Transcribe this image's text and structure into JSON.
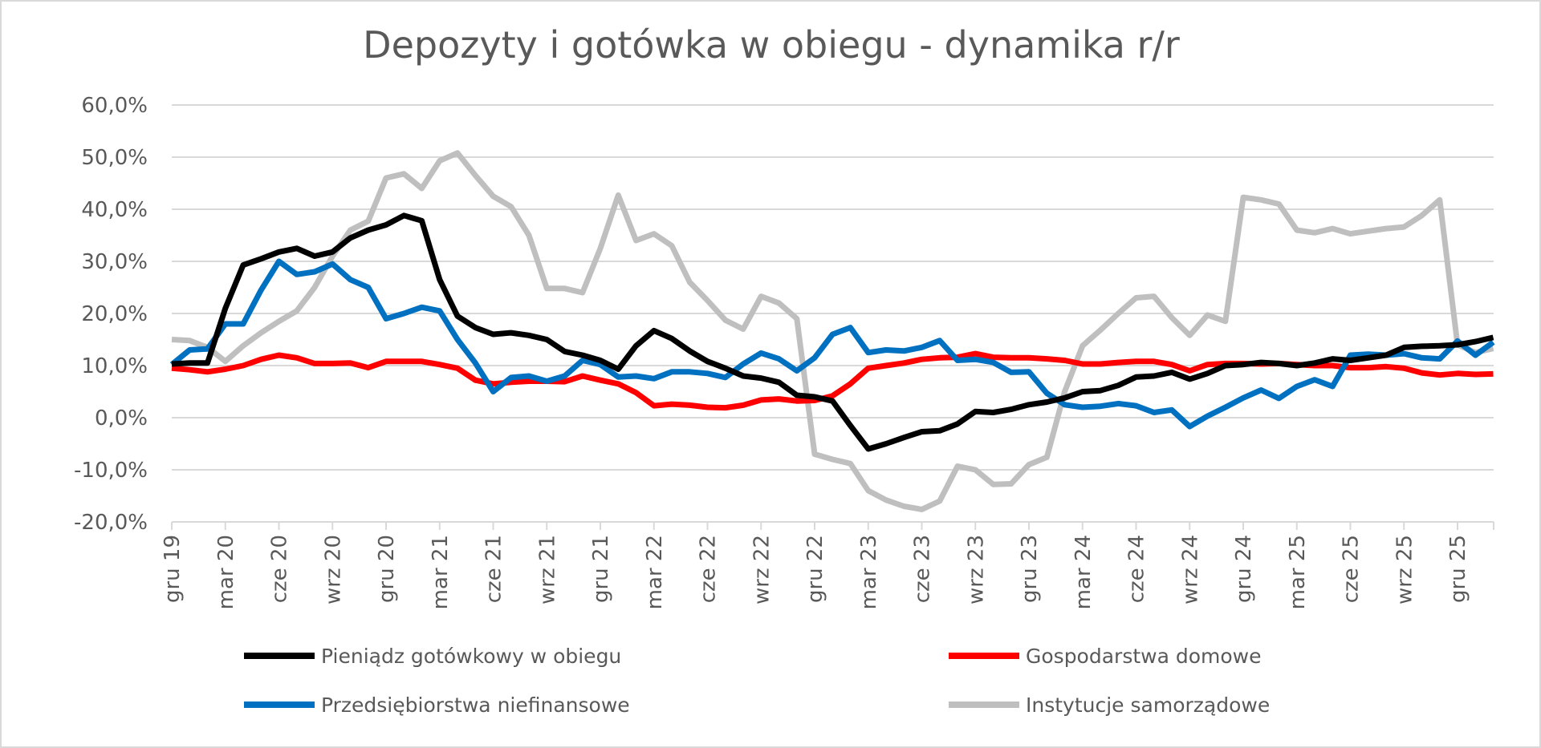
{
  "chart_data": {
    "type": "line",
    "title": "Depozyty i gotówka w obiegu - dynamika r/r",
    "xlabel": "",
    "ylabel": "",
    "ylim": [
      -20,
      60
    ],
    "y_ticks": [
      "60,0%",
      "50,0%",
      "40,0%",
      "30,0%",
      "20,0%",
      "10,0%",
      "0,0%",
      "-10,0%",
      "-20,0%"
    ],
    "y_tick_values": [
      60,
      50,
      40,
      30,
      20,
      10,
      0,
      -10,
      -20
    ],
    "x_tick_labels": [
      "gru 19",
      "mar 20",
      "cze 20",
      "wrz 20",
      "gru 20",
      "mar 21",
      "cze 21",
      "wrz 21",
      "gru 21",
      "mar 22",
      "cze 22",
      "wrz 22",
      "gru 22",
      "mar 23",
      "cze 23",
      "wrz 23",
      "gru 23",
      "mar 24",
      "cze 24",
      "wrz 24",
      "gru 24",
      "mar 25",
      "cze 25",
      "wrz 25",
      "gru 25"
    ],
    "x_range": [
      "2019-12",
      "2026-02"
    ],
    "x_frequency": "monthly",
    "grid": "horizontal",
    "legend_placement": "bottom",
    "series": [
      {
        "name": "Pieniądz gotówkowy w obiegu",
        "color": "#000000",
        "values": [
          10.3,
          10.5,
          10.5,
          21,
          29.3,
          30.5,
          31.8,
          32.5,
          31,
          31.8,
          34.5,
          36,
          37,
          38.8,
          37.8,
          26.5,
          19.5,
          17.3,
          16,
          16.3,
          15.8,
          15,
          12.7,
          12,
          11,
          9.3,
          13.8,
          16.7,
          15.2,
          12.8,
          10.8,
          9.5,
          8,
          7.6,
          6.8,
          4.3,
          4,
          3.2,
          -1.5,
          -6,
          -5,
          -3.8,
          -2.7,
          -2.5,
          -1.2,
          1.2,
          1,
          1.6,
          2.5,
          3,
          3.8,
          5,
          5.2,
          6.2,
          7.8,
          8,
          8.7,
          7.4,
          8.5,
          10,
          10.2,
          10.6,
          10.4,
          10,
          10.5,
          11.3,
          11,
          11.5,
          12,
          13.5,
          13.7,
          13.8,
          14,
          14.6,
          15.4
        ]
      },
      {
        "name": "Gospodarstwa domowe",
        "color": "#ff0000",
        "values": [
          9.5,
          9.2,
          8.8,
          9.3,
          10,
          11.2,
          12,
          11.5,
          10.4,
          10.4,
          10.5,
          9.6,
          10.8,
          10.8,
          10.8,
          10.2,
          9.5,
          7.2,
          6.5,
          6.8,
          7,
          7,
          6.9,
          8,
          7.2,
          6.5,
          4.8,
          2.3,
          2.6,
          2.4,
          2,
          1.9,
          2.4,
          3.4,
          3.6,
          3.2,
          3.3,
          4.2,
          6.5,
          9.5,
          10,
          10.5,
          11.2,
          11.5,
          11.6,
          12.3,
          11.6,
          11.5,
          11.5,
          11.3,
          11,
          10.3,
          10.3,
          10.6,
          10.8,
          10.8,
          10.2,
          9,
          10.2,
          10.4,
          10.4,
          10.3,
          10.4,
          10.2,
          10,
          10,
          9.6,
          9.6,
          9.8,
          9.5,
          8.6,
          8.2,
          8.5,
          8.3,
          8.4
        ]
      },
      {
        "name": "Przedsiębiorstwa niefinansowe",
        "color": "#0070c0",
        "values": [
          10.2,
          13,
          13.2,
          18,
          18,
          24.5,
          30,
          27.5,
          28,
          29.5,
          26.5,
          25,
          19,
          20,
          21.2,
          20.5,
          15,
          10.5,
          5,
          7.7,
          8,
          7,
          8,
          11,
          10.2,
          7.8,
          8,
          7.5,
          8.8,
          8.8,
          8.5,
          7.7,
          10.3,
          12.4,
          11.3,
          9,
          11.5,
          16,
          17.3,
          12.5,
          13,
          12.8,
          13.5,
          14.8,
          11,
          11.2,
          10.6,
          8.7,
          8.8,
          4.7,
          2.5,
          2,
          2.2,
          2.7,
          2.3,
          1,
          1.5,
          -1.7,
          0.3,
          2,
          3.8,
          5.3,
          3.7,
          6,
          7.3,
          6,
          12,
          12.2,
          12,
          12.3,
          11.5,
          11.3,
          14.7,
          12,
          14.5
        ]
      },
      {
        "name": "Instytucje samorządowe",
        "color": "#bfbfbf",
        "values": [
          15,
          14.8,
          13.5,
          10.8,
          13.8,
          16.3,
          18.5,
          20.5,
          25,
          31,
          36,
          37.7,
          46,
          46.8,
          44,
          49.3,
          50.8,
          46.5,
          42.5,
          40.5,
          35,
          24.8,
          24.8,
          24,
          32.5,
          42.7,
          34,
          35.3,
          33,
          26,
          22.5,
          18.7,
          17,
          23.3,
          22,
          19,
          -7,
          -8,
          -8.8,
          -14,
          -15.8,
          -17,
          -17.6,
          -16,
          -9.3,
          -10,
          -12.8,
          -12.7,
          -9,
          -7.6,
          5,
          13.8,
          16.8,
          20,
          23,
          23.3,
          19.2,
          15.8,
          19.7,
          18.5,
          42.3,
          41.8,
          41,
          36,
          35.5,
          36.3,
          35.3,
          35.8,
          36.3,
          36.6,
          38.8,
          41.8,
          14,
          12.5,
          13.3
        ]
      }
    ]
  }
}
